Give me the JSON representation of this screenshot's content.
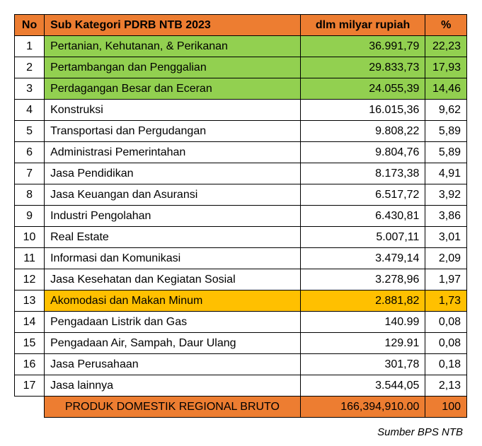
{
  "header": {
    "no": "No",
    "category": "Sub Kategori PDRB NTB 2023",
    "value": "dlm milyar rupiah",
    "percent": "%"
  },
  "rows": [
    {
      "no": "1",
      "category": "Pertanian, Kehutanan, & Perikanan",
      "value": "36.991,79",
      "percent": "22,23",
      "highlight": "green"
    },
    {
      "no": "2",
      "category": "Pertambangan dan Penggalian",
      "value": "29.833,73",
      "percent": "17,93",
      "highlight": "green"
    },
    {
      "no": "3",
      "category": "Perdagangan Besar dan Eceran",
      "value": "24.055,39",
      "percent": "14,46",
      "highlight": "green"
    },
    {
      "no": "4",
      "category": "Konstruksi",
      "value": "16.015,36",
      "percent": "9,62",
      "highlight": "none"
    },
    {
      "no": "5",
      "category": "Transportasi dan Pergudangan",
      "value": "9.808,22",
      "percent": "5,89",
      "highlight": "none"
    },
    {
      "no": "6",
      "category": "Administrasi Pemerintahan",
      "value": "9.804,76",
      "percent": "5,89",
      "highlight": "none"
    },
    {
      "no": "7",
      "category": "Jasa Pendidikan",
      "value": "8.173,38",
      "percent": "4,91",
      "highlight": "none"
    },
    {
      "no": "8",
      "category": "Jasa Keuangan dan Asuransi",
      "value": "6.517,72",
      "percent": "3,92",
      "highlight": "none"
    },
    {
      "no": "9",
      "category": "Industri Pengolahan",
      "value": "6.430,81",
      "percent": "3,86",
      "highlight": "none"
    },
    {
      "no": "10",
      "category": "Real Estate",
      "value": "5.007,11",
      "percent": "3,01",
      "highlight": "none"
    },
    {
      "no": "11",
      "category": "Informasi dan Komunikasi",
      "value": "3.479,14",
      "percent": "2,09",
      "highlight": "none"
    },
    {
      "no": "12",
      "category": "Jasa Kesehatan dan Kegiatan Sosial",
      "value": "3.278,96",
      "percent": "1,97",
      "highlight": "none"
    },
    {
      "no": "13",
      "category": "Akomodasi dan Makan Minum",
      "value": "2.881,82",
      "percent": "1,73",
      "highlight": "yellow"
    },
    {
      "no": "14",
      "category": "Pengadaan Listrik dan Gas",
      "value": "140.99",
      "percent": "0,08",
      "highlight": "none"
    },
    {
      "no": "15",
      "category": "Pengadaan Air, Sampah, Daur Ulang",
      "value": "129.91",
      "percent": "0,08",
      "highlight": "none"
    },
    {
      "no": "16",
      "category": "Jasa Perusahaan",
      "value": "301,78",
      "percent": "0,18",
      "highlight": "none"
    },
    {
      "no": "17",
      "category": "Jasa lainnya",
      "value": "3.544,05",
      "percent": "2,13",
      "highlight": "none"
    }
  ],
  "total": {
    "category": "PRODUK DOMESTIK REGIONAL BRUTO",
    "value": "166,394,910.00",
    "percent": "100"
  },
  "source": "Sumber BPS NTB",
  "colors": {
    "header": "#ed7d31",
    "green_highlight": "#92d050",
    "yellow_highlight": "#ffc000",
    "total": "#ed7d31"
  }
}
